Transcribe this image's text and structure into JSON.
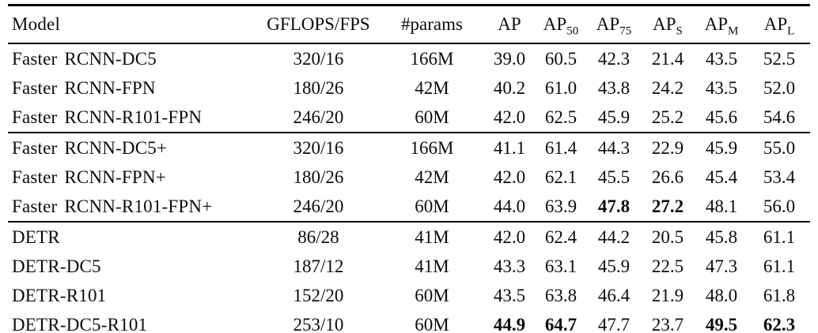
{
  "colors": {
    "background": "#ffffff",
    "text": "#000000",
    "rule": "#000000"
  },
  "table": {
    "column_keys": [
      "model",
      "gflops-fps",
      "params",
      "ap",
      "ap50",
      "ap75",
      "ap-s",
      "ap-m",
      "ap-l"
    ],
    "header": [
      {
        "label": "Model",
        "sub": ""
      },
      {
        "label": "GFLOPS/FPS",
        "sub": ""
      },
      {
        "label": "#params",
        "sub": ""
      },
      {
        "label": "AP",
        "sub": ""
      },
      {
        "label": "AP",
        "sub": "50"
      },
      {
        "label": "AP",
        "sub": "75"
      },
      {
        "label": "AP",
        "sub": "S"
      },
      {
        "label": "AP",
        "sub": "M"
      },
      {
        "label": "AP",
        "sub": "L"
      }
    ],
    "groups": [
      {
        "rows": [
          {
            "cells": [
              "Faster RCNN-DC5",
              "320/16",
              "166M",
              "39.0",
              "60.5",
              "42.3",
              "21.4",
              "43.5",
              "52.5"
            ],
            "bold": []
          },
          {
            "cells": [
              "Faster RCNN-FPN",
              "180/26",
              "42M",
              "40.2",
              "61.0",
              "43.8",
              "24.2",
              "43.5",
              "52.0"
            ],
            "bold": []
          },
          {
            "cells": [
              "Faster RCNN-R101-FPN",
              "246/20",
              "60M",
              "42.0",
              "62.5",
              "45.9",
              "25.2",
              "45.6",
              "54.6"
            ],
            "bold": []
          }
        ]
      },
      {
        "rows": [
          {
            "cells": [
              "Faster RCNN-DC5+",
              "320/16",
              "166M",
              "41.1",
              "61.4",
              "44.3",
              "22.9",
              "45.9",
              "55.0"
            ],
            "bold": []
          },
          {
            "cells": [
              "Faster RCNN-FPN+",
              "180/26",
              "42M",
              "42.0",
              "62.1",
              "45.5",
              "26.6",
              "45.4",
              "53.4"
            ],
            "bold": []
          },
          {
            "cells": [
              "Faster RCNN-R101-FPN+",
              "246/20",
              "60M",
              "44.0",
              "63.9",
              "47.8",
              "27.2",
              "48.1",
              "56.0"
            ],
            "bold": [
              5,
              6
            ]
          }
        ]
      },
      {
        "rows": [
          {
            "cells": [
              "DETR",
              "86/28",
              "41M",
              "42.0",
              "62.4",
              "44.2",
              "20.5",
              "45.8",
              "61.1"
            ],
            "bold": []
          },
          {
            "cells": [
              "DETR-DC5",
              "187/12",
              "41M",
              "43.3",
              "63.1",
              "45.9",
              "22.5",
              "47.3",
              "61.1"
            ],
            "bold": []
          },
          {
            "cells": [
              "DETR-R101",
              "152/20",
              "60M",
              "43.5",
              "63.8",
              "46.4",
              "21.9",
              "48.0",
              "61.8"
            ],
            "bold": []
          },
          {
            "cells": [
              "DETR-DC5-R101",
              "253/10",
              "60M",
              "44.9",
              "64.7",
              "47.7",
              "23.7",
              "49.5",
              "62.3"
            ],
            "bold": [
              3,
              4,
              7,
              8
            ]
          }
        ]
      }
    ]
  }
}
